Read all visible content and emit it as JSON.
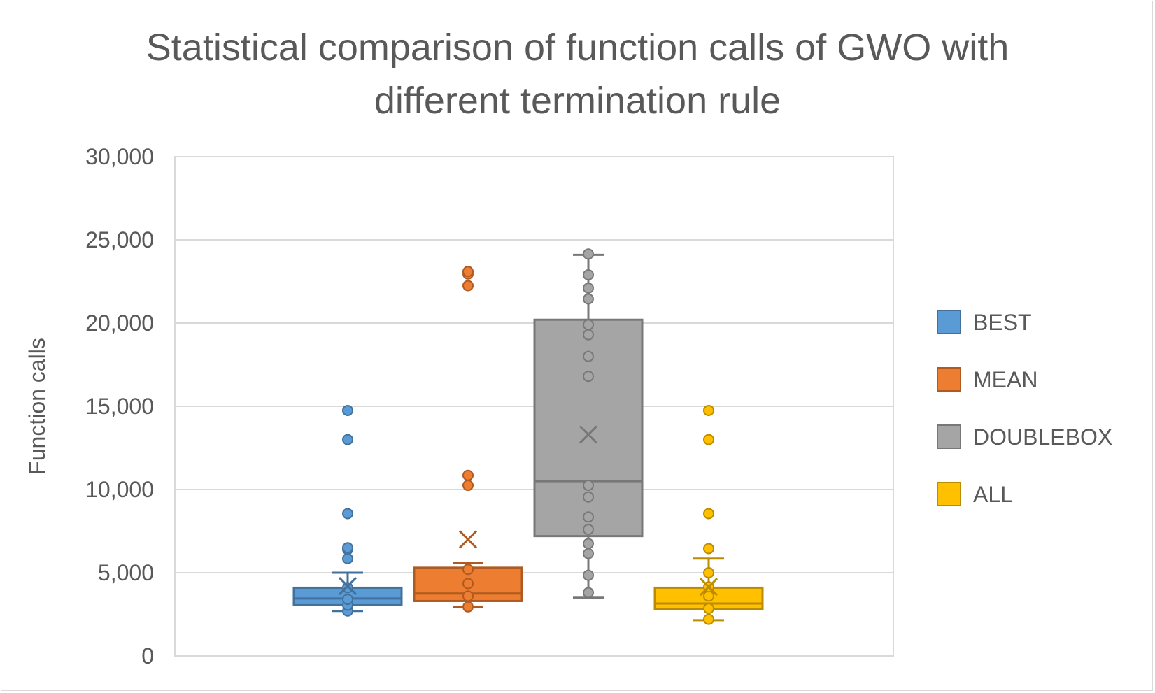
{
  "chart_data": {
    "type": "box",
    "title_lines": [
      "Statistical comparison of function calls of GWO with",
      "different termination rule"
    ],
    "ylabel": "Function calls",
    "ylim": [
      0,
      30000
    ],
    "yticks": [
      0,
      5000,
      10000,
      15000,
      20000,
      25000,
      30000
    ],
    "ytick_labels": [
      "0",
      "5,000",
      "10,000",
      "15,000",
      "20,000",
      "25,000",
      "30,000"
    ],
    "grid": true,
    "legend_position": "right",
    "series": [
      {
        "name": "BEST",
        "color": "#5b9bd5",
        "edge": "#41719c",
        "whisker_low": 2700,
        "q1": 3050,
        "median": 3450,
        "q3": 4100,
        "whisker_high": 5000,
        "mean": 4200,
        "points": [
          2700,
          3050,
          3400,
          4100,
          5850,
          6400,
          6500,
          8550,
          13000,
          14750
        ]
      },
      {
        "name": "MEAN",
        "color": "#ed7d31",
        "edge": "#ae5a21",
        "whisker_low": 2950,
        "q1": 3300,
        "median": 3750,
        "q3": 5300,
        "whisker_high": 5600,
        "mean": 7000,
        "points": [
          2950,
          3600,
          4350,
          5200,
          10250,
          10850,
          22250,
          22950,
          23100
        ]
      },
      {
        "name": "DOUBLEBOX",
        "color": "#a5a5a5",
        "edge": "#787878",
        "whisker_low": 3500,
        "q1": 7200,
        "median": 10500,
        "q3": 20200,
        "whisker_high": 24100,
        "mean": 13300,
        "points": [
          3800,
          4850,
          6150,
          6750,
          7600,
          8350,
          9550,
          10250,
          16800,
          18000,
          19300,
          19900,
          21450,
          22100,
          22900,
          24150
        ]
      },
      {
        "name": "ALL",
        "color": "#ffc000",
        "edge": "#bc8c00",
        "whisker_low": 2150,
        "q1": 2800,
        "median": 3150,
        "q3": 4100,
        "whisker_high": 5850,
        "mean": 4150,
        "points": [
          2200,
          2850,
          3600,
          4150,
          5000,
          6450,
          8550,
          13000,
          14750
        ]
      }
    ]
  }
}
